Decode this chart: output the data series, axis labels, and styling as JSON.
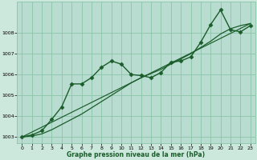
{
  "xlabel": "Graphe pression niveau de la mer (hPa)",
  "background_color": "#cce8dc",
  "plot_bg_color": "#b8ddd0",
  "grid_color": "#8cc4aa",
  "line_color": "#1a5c2a",
  "ylim": [
    1002.7,
    1009.5
  ],
  "xlim": [
    -0.5,
    23.5
  ],
  "xticks": [
    0,
    1,
    2,
    3,
    4,
    5,
    6,
    7,
    8,
    9,
    10,
    11,
    12,
    13,
    14,
    15,
    16,
    17,
    18,
    19,
    20,
    21,
    22,
    23
  ],
  "yticks": [
    1003,
    1004,
    1005,
    1006,
    1007,
    1008
  ],
  "line1_x": [
    0,
    1,
    2,
    3,
    4,
    5,
    6,
    7,
    8,
    9,
    10,
    11,
    12,
    13,
    14,
    15,
    16,
    17,
    18,
    19,
    20,
    21,
    22,
    23
  ],
  "line1_y": [
    1003.0,
    1003.1,
    1003.3,
    1003.85,
    1004.45,
    1005.55,
    1005.55,
    1005.85,
    1006.35,
    1006.65,
    1006.5,
    1006.0,
    1005.95,
    1005.85,
    1006.1,
    1006.6,
    1006.65,
    1006.85,
    1007.55,
    1008.4,
    1009.1,
    1008.15,
    1008.05,
    1008.35
  ],
  "line2_x": [
    0,
    1,
    2,
    3,
    4,
    5,
    6,
    7,
    8,
    9,
    10,
    11,
    12,
    13,
    14,
    15,
    16,
    17,
    18,
    19,
    20,
    21,
    22,
    23
  ],
  "line2_y": [
    1003.0,
    1003.05,
    1003.15,
    1003.35,
    1003.6,
    1003.85,
    1004.1,
    1004.4,
    1004.7,
    1005.0,
    1005.3,
    1005.6,
    1005.85,
    1006.05,
    1006.25,
    1006.5,
    1006.75,
    1007.0,
    1007.3,
    1007.6,
    1007.95,
    1008.2,
    1008.35,
    1008.45
  ],
  "line3_x": [
    0,
    23
  ],
  "line3_y": [
    1003.0,
    1008.45
  ],
  "marker_size": 2.5,
  "linewidth1": 1.0,
  "linewidth2": 0.9,
  "linewidth3": 0.85
}
